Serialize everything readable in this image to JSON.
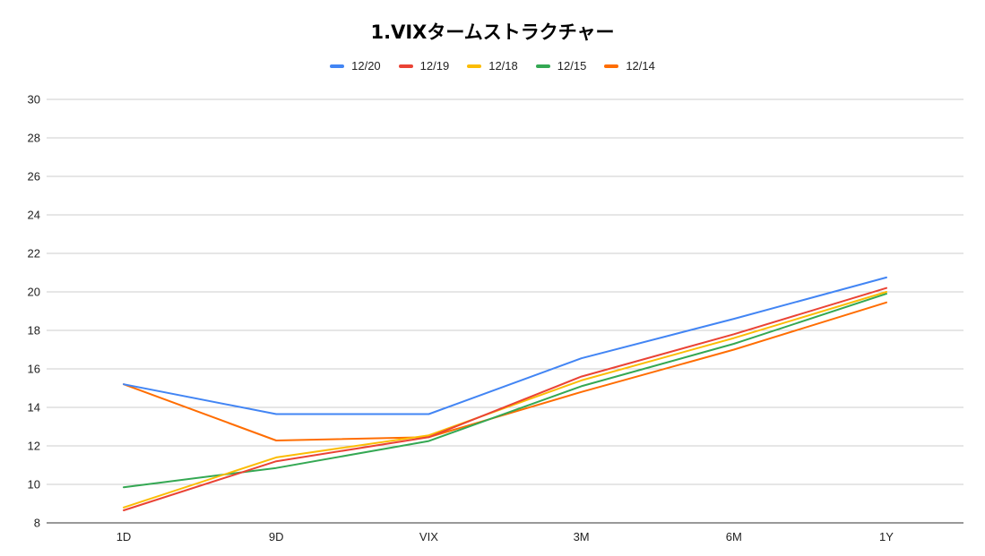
{
  "chart_data": {
    "type": "line",
    "title": "1.VIXタームストラクチャー",
    "xlabel": "",
    "ylabel": "",
    "categories": [
      "1D",
      "9D",
      "VIX",
      "3M",
      "6M",
      "1Y"
    ],
    "ylim": [
      8,
      30
    ],
    "yticks": [
      8,
      10,
      12,
      14,
      16,
      18,
      20,
      22,
      24,
      26,
      28,
      30
    ],
    "grid": true,
    "legend_position": "top",
    "series": [
      {
        "name": "12/20",
        "color": "#4285F4",
        "values": [
          15.2,
          13.65,
          13.65,
          16.55,
          18.6,
          20.75
        ]
      },
      {
        "name": "12/19",
        "color": "#EA4335",
        "values": [
          8.65,
          11.2,
          12.45,
          15.6,
          17.8,
          20.2
        ]
      },
      {
        "name": "12/18",
        "color": "#FBBC04",
        "values": [
          8.8,
          11.4,
          12.55,
          15.4,
          17.6,
          20.0
        ]
      },
      {
        "name": "12/15",
        "color": "#34A853",
        "values": [
          9.85,
          10.85,
          12.25,
          15.1,
          17.3,
          19.9
        ]
      },
      {
        "name": "12/14",
        "color": "#FF6D01",
        "values": [
          15.2,
          12.28,
          12.45,
          14.8,
          17.0,
          19.45
        ]
      }
    ]
  }
}
